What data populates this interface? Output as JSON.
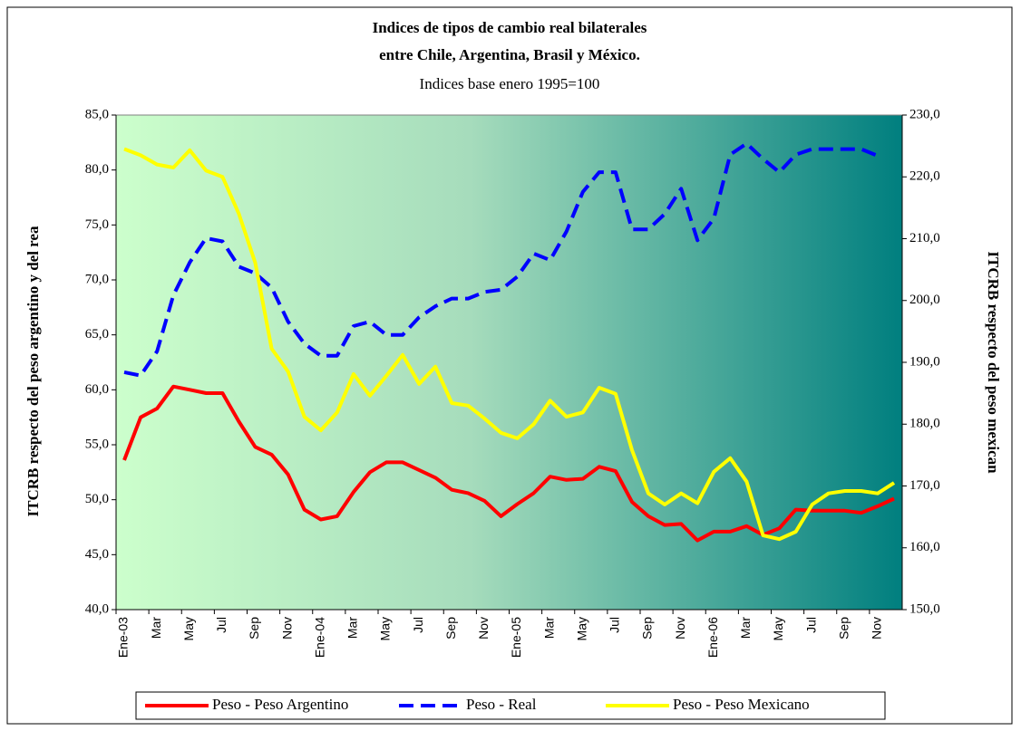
{
  "chart_data": {
    "type": "line",
    "title": "Indices de tipos de cambio real  bilaterales",
    "subtitle": "entre Chile,  Argentina, Brasil y México.",
    "note": "Indices base enero 1995=100",
    "ylabel": "ITCRB respecto del peso argentino y del rea",
    "y2label": "ITCRB respecto del peso mexican",
    "categories": [
      "Ene-03",
      null,
      "Mar",
      null,
      "May",
      null,
      "Jul",
      null,
      "Sep",
      null,
      "Nov",
      null,
      "Ene-04",
      null,
      "Mar",
      null,
      "May",
      null,
      "Jul",
      null,
      "Sep",
      null,
      "Nov",
      null,
      "Ene-05",
      null,
      "Mar",
      null,
      "May",
      null,
      "Jul",
      null,
      "Sep",
      null,
      "Nov",
      null,
      "Ene-06",
      null,
      "Mar",
      null,
      "May",
      null,
      "Jul",
      null,
      "Sep",
      null,
      "Nov",
      null
    ],
    "series": [
      {
        "name": "Peso - Peso Argentino",
        "color": "#ff0000",
        "dash": "solid",
        "axis": "y",
        "values": [
          53.6,
          57.5,
          58.3,
          60.3,
          60.0,
          59.7,
          59.7,
          57.1,
          54.8,
          54.1,
          52.3,
          49.1,
          48.2,
          48.5,
          50.7,
          52.5,
          53.4,
          53.4,
          52.7,
          52.0,
          50.9,
          50.6,
          49.9,
          48.5,
          49.6,
          50.6,
          52.1,
          51.8,
          51.9,
          53.0,
          52.6,
          49.8,
          48.5,
          47.7,
          47.8,
          46.3,
          47.1,
          47.1,
          47.6,
          46.8,
          47.4,
          49.1,
          49.0,
          49.0,
          49.0,
          48.8,
          49.4,
          50.1
        ]
      },
      {
        "name": "Peso - Real",
        "color": "#0000ff",
        "dash": "dashed",
        "axis": "y",
        "values": [
          61.6,
          61.3,
          63.5,
          68.6,
          71.6,
          73.8,
          73.5,
          71.2,
          70.6,
          69.3,
          66.2,
          64.2,
          63.1,
          63.1,
          65.8,
          66.2,
          65.0,
          65.0,
          66.6,
          67.6,
          68.3,
          68.3,
          68.9,
          69.1,
          70.3,
          72.4,
          71.8,
          74.4,
          78.0,
          79.8,
          79.8,
          74.6,
          74.6,
          76.0,
          78.3,
          73.6,
          75.6,
          81.4,
          82.4,
          81.0,
          79.8,
          81.4,
          81.9,
          81.9,
          81.9,
          81.9,
          81.3,
          null
        ]
      },
      {
        "name": "Peso - Peso Mexicano",
        "color": "#ffff00",
        "dash": "solid",
        "axis": "y2",
        "values": [
          224.5,
          223.5,
          222.0,
          221.5,
          224.3,
          221.0,
          220.0,
          214.0,
          206.1,
          192.2,
          188.5,
          181.2,
          179.0,
          181.9,
          188.1,
          184.6,
          187.8,
          191.2,
          186.5,
          189.3,
          183.4,
          183.0,
          180.9,
          178.6,
          177.7,
          180.0,
          183.8,
          181.2,
          181.9,
          185.9,
          184.9,
          175.8,
          168.8,
          167.0,
          168.8,
          167.2,
          172.3,
          174.5,
          170.7,
          162.0,
          161.4,
          162.6,
          167.0,
          168.8,
          169.2,
          169.2,
          168.8,
          170.5
        ]
      }
    ],
    "ylim": [
      40,
      85
    ],
    "yticks": [
      {
        "value": 40,
        "label": "40,0"
      },
      {
        "value": 45,
        "label": "45,0"
      },
      {
        "value": 50,
        "label": "50,0"
      },
      {
        "value": 55,
        "label": "55,0"
      },
      {
        "value": 60,
        "label": "60,0"
      },
      {
        "value": 65,
        "label": "65,0"
      },
      {
        "value": 70,
        "label": "70,0"
      },
      {
        "value": 75,
        "label": "75,0"
      },
      {
        "value": 80,
        "label": "80,0"
      },
      {
        "value": 85,
        "label": "85,0"
      }
    ],
    "y2lim": [
      150,
      230
    ],
    "y2ticks": [
      {
        "value": 150,
        "label": "150,0"
      },
      {
        "value": 160,
        "label": "160,0"
      },
      {
        "value": 170,
        "label": "170,0"
      },
      {
        "value": 180,
        "label": "180,0"
      },
      {
        "value": 190,
        "label": "190,0"
      },
      {
        "value": 200,
        "label": "200,0"
      },
      {
        "value": 210,
        "label": "210,0"
      },
      {
        "value": 220,
        "label": "220,0"
      },
      {
        "value": 230,
        "label": "230,0"
      }
    ],
    "legend": "bottom"
  }
}
